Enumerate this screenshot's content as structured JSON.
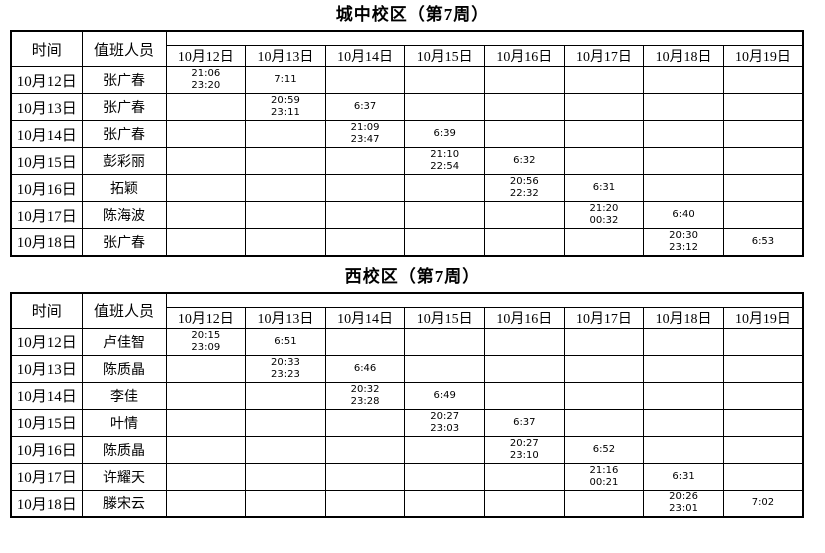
{
  "document": {
    "background": "#ffffff",
    "grid_color": "#000000"
  },
  "tables": [
    {
      "title": "城中校区（第7周）",
      "time_header": "时间",
      "person_header": "值班人员",
      "date_columns": [
        "10月12日",
        "10月13日",
        "10月14日",
        "10月15日",
        "10月16日",
        "10月17日",
        "10月18日",
        "10月19日"
      ],
      "rows": [
        {
          "date": "10月12日",
          "person": "张广春",
          "cells": [
            "21:06\n23:20",
            "7:11",
            "",
            "",
            "",
            "",
            "",
            ""
          ]
        },
        {
          "date": "10月13日",
          "person": "张广春",
          "cells": [
            "",
            "20:59\n23:11",
            "6:37",
            "",
            "",
            "",
            "",
            ""
          ]
        },
        {
          "date": "10月14日",
          "person": "张广春",
          "cells": [
            "",
            "",
            "21:09\n23:47",
            "6:39",
            "",
            "",
            "",
            ""
          ]
        },
        {
          "date": "10月15日",
          "person": "彭彩丽",
          "cells": [
            "",
            "",
            "",
            "21:10\n22:54",
            "6:32",
            "",
            "",
            ""
          ]
        },
        {
          "date": "10月16日",
          "person": "拓颖",
          "cells": [
            "",
            "",
            "",
            "",
            "20:56\n22:32",
            "6:31",
            "",
            ""
          ]
        },
        {
          "date": "10月17日",
          "person": "陈海波",
          "cells": [
            "",
            "",
            "",
            "",
            "",
            "21:20\n00:32",
            "6:40",
            ""
          ]
        },
        {
          "date": "10月18日",
          "person": "张广春",
          "cells": [
            "",
            "",
            "",
            "",
            "",
            "",
            "20:30\n23:12",
            "6:53"
          ]
        }
      ]
    },
    {
      "title": "西校区（第7周）",
      "time_header": "时间",
      "person_header": "值班人员",
      "date_columns": [
        "10月12日",
        "10月13日",
        "10月14日",
        "10月15日",
        "10月16日",
        "10月17日",
        "10月18日",
        "10月19日"
      ],
      "rows": [
        {
          "date": "10月12日",
          "person": "卢佳智",
          "cells": [
            "20:15\n23:09",
            "6:51",
            "",
            "",
            "",
            "",
            "",
            ""
          ]
        },
        {
          "date": "10月13日",
          "person": "陈质晶",
          "cells": [
            "",
            "20:33\n23:23",
            "6:46",
            "",
            "",
            "",
            "",
            ""
          ]
        },
        {
          "date": "10月14日",
          "person": "李佳",
          "cells": [
            "",
            "",
            "20:32\n23:28",
            "6:49",
            "",
            "",
            "",
            ""
          ]
        },
        {
          "date": "10月15日",
          "person": "叶情",
          "cells": [
            "",
            "",
            "",
            "20:27\n23:03",
            "6:37",
            "",
            "",
            ""
          ]
        },
        {
          "date": "10月16日",
          "person": "陈质晶",
          "cells": [
            "",
            "",
            "",
            "",
            "20:27\n23:10",
            "6:52",
            "",
            ""
          ]
        },
        {
          "date": "10月17日",
          "person": "许耀天",
          "cells": [
            "",
            "",
            "",
            "",
            "",
            "21:16\n00:21",
            "6:31",
            ""
          ]
        },
        {
          "date": "10月18日",
          "person": "滕宋云",
          "cells": [
            "",
            "",
            "",
            "",
            "",
            "",
            "20:26\n23:01",
            "7:02"
          ]
        }
      ]
    }
  ]
}
